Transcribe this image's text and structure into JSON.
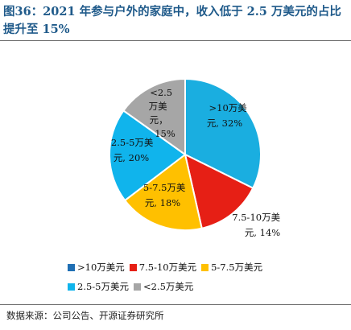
{
  "header": {
    "title": "图36：2021 年参与户外的家庭中，收入低于 2.5 万美元的占比提升至 15%"
  },
  "chart_data": {
    "type": "pie",
    "slices": [
      {
        "name": ">10万美元",
        "value": 32,
        "label_line1": ">10万美",
        "label_line2": "元, 32%",
        "color": "#1aaee0"
      },
      {
        "name": "7.5-10万美元",
        "value": 14,
        "label_line1": "7.5-10万美",
        "label_line2": "元, 14%",
        "color": "#e61f15"
      },
      {
        "name": "5-7.5万美元",
        "value": 18,
        "label_line1": "5-7.5万美",
        "label_line2": "元, 18%",
        "color": "#ffc000"
      },
      {
        "name": "2.5-5万美元",
        "value": 20,
        "label_line1": "2.5-5万美",
        "label_line2": "元, 20%",
        "color": "#10b4ec"
      },
      {
        "name": "<2.5万美元",
        "value": 15,
        "label_line1": "<2.5",
        "label_line2": "万美",
        "label_line3": "元，",
        "label_line4": "15%",
        "color": "#a6a6a6"
      }
    ]
  },
  "legend": {
    "items": [
      {
        "label": ">10万美元",
        "color": "#1f6fb4"
      },
      {
        "label": "7.5-10万美元",
        "color": "#e61f15"
      },
      {
        "label": "5-7.5万美元",
        "color": "#ffc000"
      },
      {
        "label": "2.5-5万美元",
        "color": "#10b4ec"
      },
      {
        "label": "<2.5万美元",
        "color": "#a6a6a6"
      }
    ]
  },
  "footer": {
    "source": "数据来源：公司公告、开源证券研究所"
  }
}
